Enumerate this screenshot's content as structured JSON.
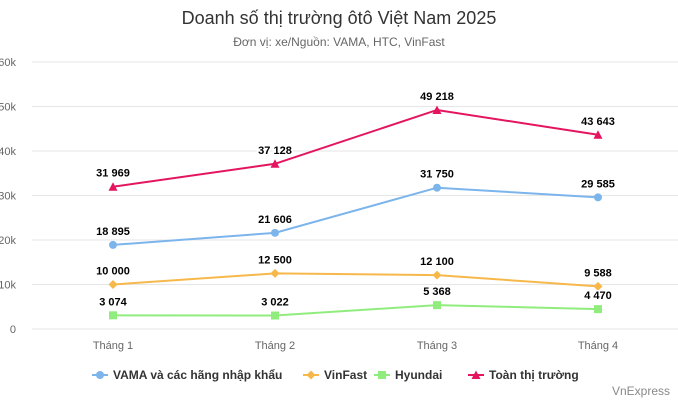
{
  "chart_data": {
    "type": "line",
    "title": "Doanh số thị trường ôtô Việt Nam 2025",
    "subtitle": "Đơn vị: xe/Nguồn: VAMA, HTC, VinFast",
    "categories": [
      "Tháng 1",
      "Tháng 2",
      "Tháng 3",
      "Tháng 4"
    ],
    "ylim": [
      0,
      60000
    ],
    "yticks": [
      0,
      10000,
      20000,
      30000,
      40000,
      50000,
      60000
    ],
    "ytick_labels": [
      "0",
      "10k",
      "20k",
      "30k",
      "40k",
      "50k",
      "60k"
    ],
    "grid": true,
    "legend_position": "bottom",
    "series": [
      {
        "name": "VAMA và các hãng nhập khẩu",
        "color": "#7cb5ec",
        "marker": "circle",
        "values": [
          18895,
          21606,
          31750,
          29585
        ],
        "labels": [
          "18 895",
          "21 606",
          "31 750",
          "29 585"
        ]
      },
      {
        "name": "VinFast",
        "color": "#f7b84b",
        "marker": "diamond",
        "values": [
          10000,
          12500,
          12100,
          9588
        ],
        "labels": [
          "10 000",
          "12 500",
          "12 100",
          "9 588"
        ]
      },
      {
        "name": "Hyundai",
        "color": "#90ed7d",
        "marker": "square",
        "values": [
          3074,
          3022,
          5368,
          4470
        ],
        "labels": [
          "3 074",
          "3 022",
          "5 368",
          "4 470"
        ]
      },
      {
        "name": "Toàn thị trường",
        "color": "#e4145f",
        "marker": "triangle",
        "values": [
          31969,
          37128,
          49218,
          43643
        ],
        "labels": [
          "31 969",
          "37 128",
          "49 218",
          "43 643"
        ]
      }
    ]
  },
  "credit": "VnExpress"
}
